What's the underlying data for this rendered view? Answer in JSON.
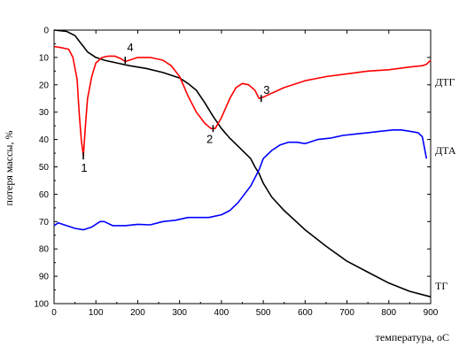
{
  "chart_data": {
    "type": "line",
    "xlabel": "температура, oC",
    "ylabel": "потеря массы, %",
    "xlim": [
      0,
      900
    ],
    "ylim": [
      0,
      100
    ],
    "y_inverted": true,
    "x_ticks": [
      0,
      100,
      200,
      300,
      400,
      500,
      600,
      700,
      800,
      900
    ],
    "y_ticks": [
      0,
      10,
      20,
      30,
      40,
      50,
      60,
      70,
      80,
      90,
      100
    ],
    "grid": false,
    "series": [
      {
        "name": "ТГ",
        "color": "#000000",
        "x": [
          0,
          30,
          50,
          60,
          70,
          80,
          90,
          100,
          120,
          150,
          180,
          220,
          260,
          300,
          320,
          340,
          360,
          380,
          400,
          420,
          440,
          460,
          470,
          480,
          490,
          500,
          520,
          550,
          600,
          650,
          700,
          750,
          800,
          850,
          900
        ],
        "y": [
          0,
          0.5,
          2,
          4,
          6,
          8,
          9,
          10,
          11,
          12,
          13,
          14,
          15.5,
          17.5,
          19.5,
          22,
          26.5,
          31.5,
          36,
          39.5,
          42.5,
          45.5,
          47,
          50,
          52.5,
          56,
          61,
          66,
          73,
          79,
          84.5,
          88.5,
          92.5,
          95.5,
          97.5
        ]
      },
      {
        "name": "ДТГ",
        "color": "#ff0000",
        "x": [
          0,
          20,
          35,
          45,
          55,
          60,
          65,
          70,
          75,
          80,
          90,
          100,
          115,
          130,
          145,
          160,
          170,
          180,
          200,
          230,
          260,
          280,
          300,
          320,
          340,
          360,
          375,
          385,
          400,
          420,
          435,
          450,
          465,
          480,
          490,
          500,
          550,
          600,
          650,
          700,
          750,
          800,
          850,
          880,
          890,
          900
        ],
        "y": [
          6,
          6.5,
          7,
          10,
          18,
          30,
          40,
          46,
          35,
          25,
          17,
          12,
          10,
          9.5,
          9.5,
          10.5,
          11.5,
          11,
          10,
          10,
          11,
          13,
          17,
          24,
          30,
          34,
          36,
          36,
          32,
          25,
          21,
          19.5,
          20,
          22,
          25,
          24.5,
          21,
          18.5,
          17,
          16,
          15,
          14.5,
          13.5,
          13,
          12.5,
          11
        ]
      },
      {
        "name": "ДТА",
        "color": "#0000ff",
        "x": [
          0,
          10,
          30,
          50,
          70,
          90,
          110,
          120,
          140,
          170,
          200,
          230,
          260,
          290,
          320,
          350,
          370,
          400,
          420,
          440,
          460,
          470,
          480,
          490,
          500,
          520,
          540,
          560,
          580,
          600,
          630,
          660,
          690,
          720,
          750,
          780,
          810,
          830,
          850,
          870,
          880,
          890
        ],
        "y": [
          71.5,
          70.5,
          71.5,
          72.5,
          73,
          72,
          70,
          70,
          71.5,
          71.5,
          71,
          71.2,
          70,
          69.5,
          68.5,
          68.5,
          68.5,
          67.5,
          66,
          63,
          59,
          57,
          54,
          51,
          47,
          44,
          42,
          41,
          41,
          41.5,
          40,
          39.5,
          38.5,
          38,
          37.5,
          37,
          36.5,
          36.5,
          37,
          37.5,
          39,
          47
        ]
      }
    ],
    "series_labels": [
      {
        "text": "ДТГ",
        "x": 915,
        "y": 19,
        "series": "ДТГ"
      },
      {
        "text": "ДТА",
        "x": 915,
        "y": 44,
        "series": "ДТА"
      },
      {
        "text": "ТГ",
        "x": 915,
        "y": 93.5,
        "series": "ТГ"
      }
    ],
    "annotations": [
      {
        "text": "1",
        "x": 72,
        "y": 50.5,
        "marker_y": 46
      },
      {
        "text": "2",
        "x": 372,
        "y": 40,
        "marker_y": 36
      },
      {
        "text": "3",
        "x": 508,
        "y": 22,
        "marker_y": 25
      },
      {
        "text": "4",
        "x": 182,
        "y": 6.5,
        "marker_y": 11
      }
    ]
  }
}
